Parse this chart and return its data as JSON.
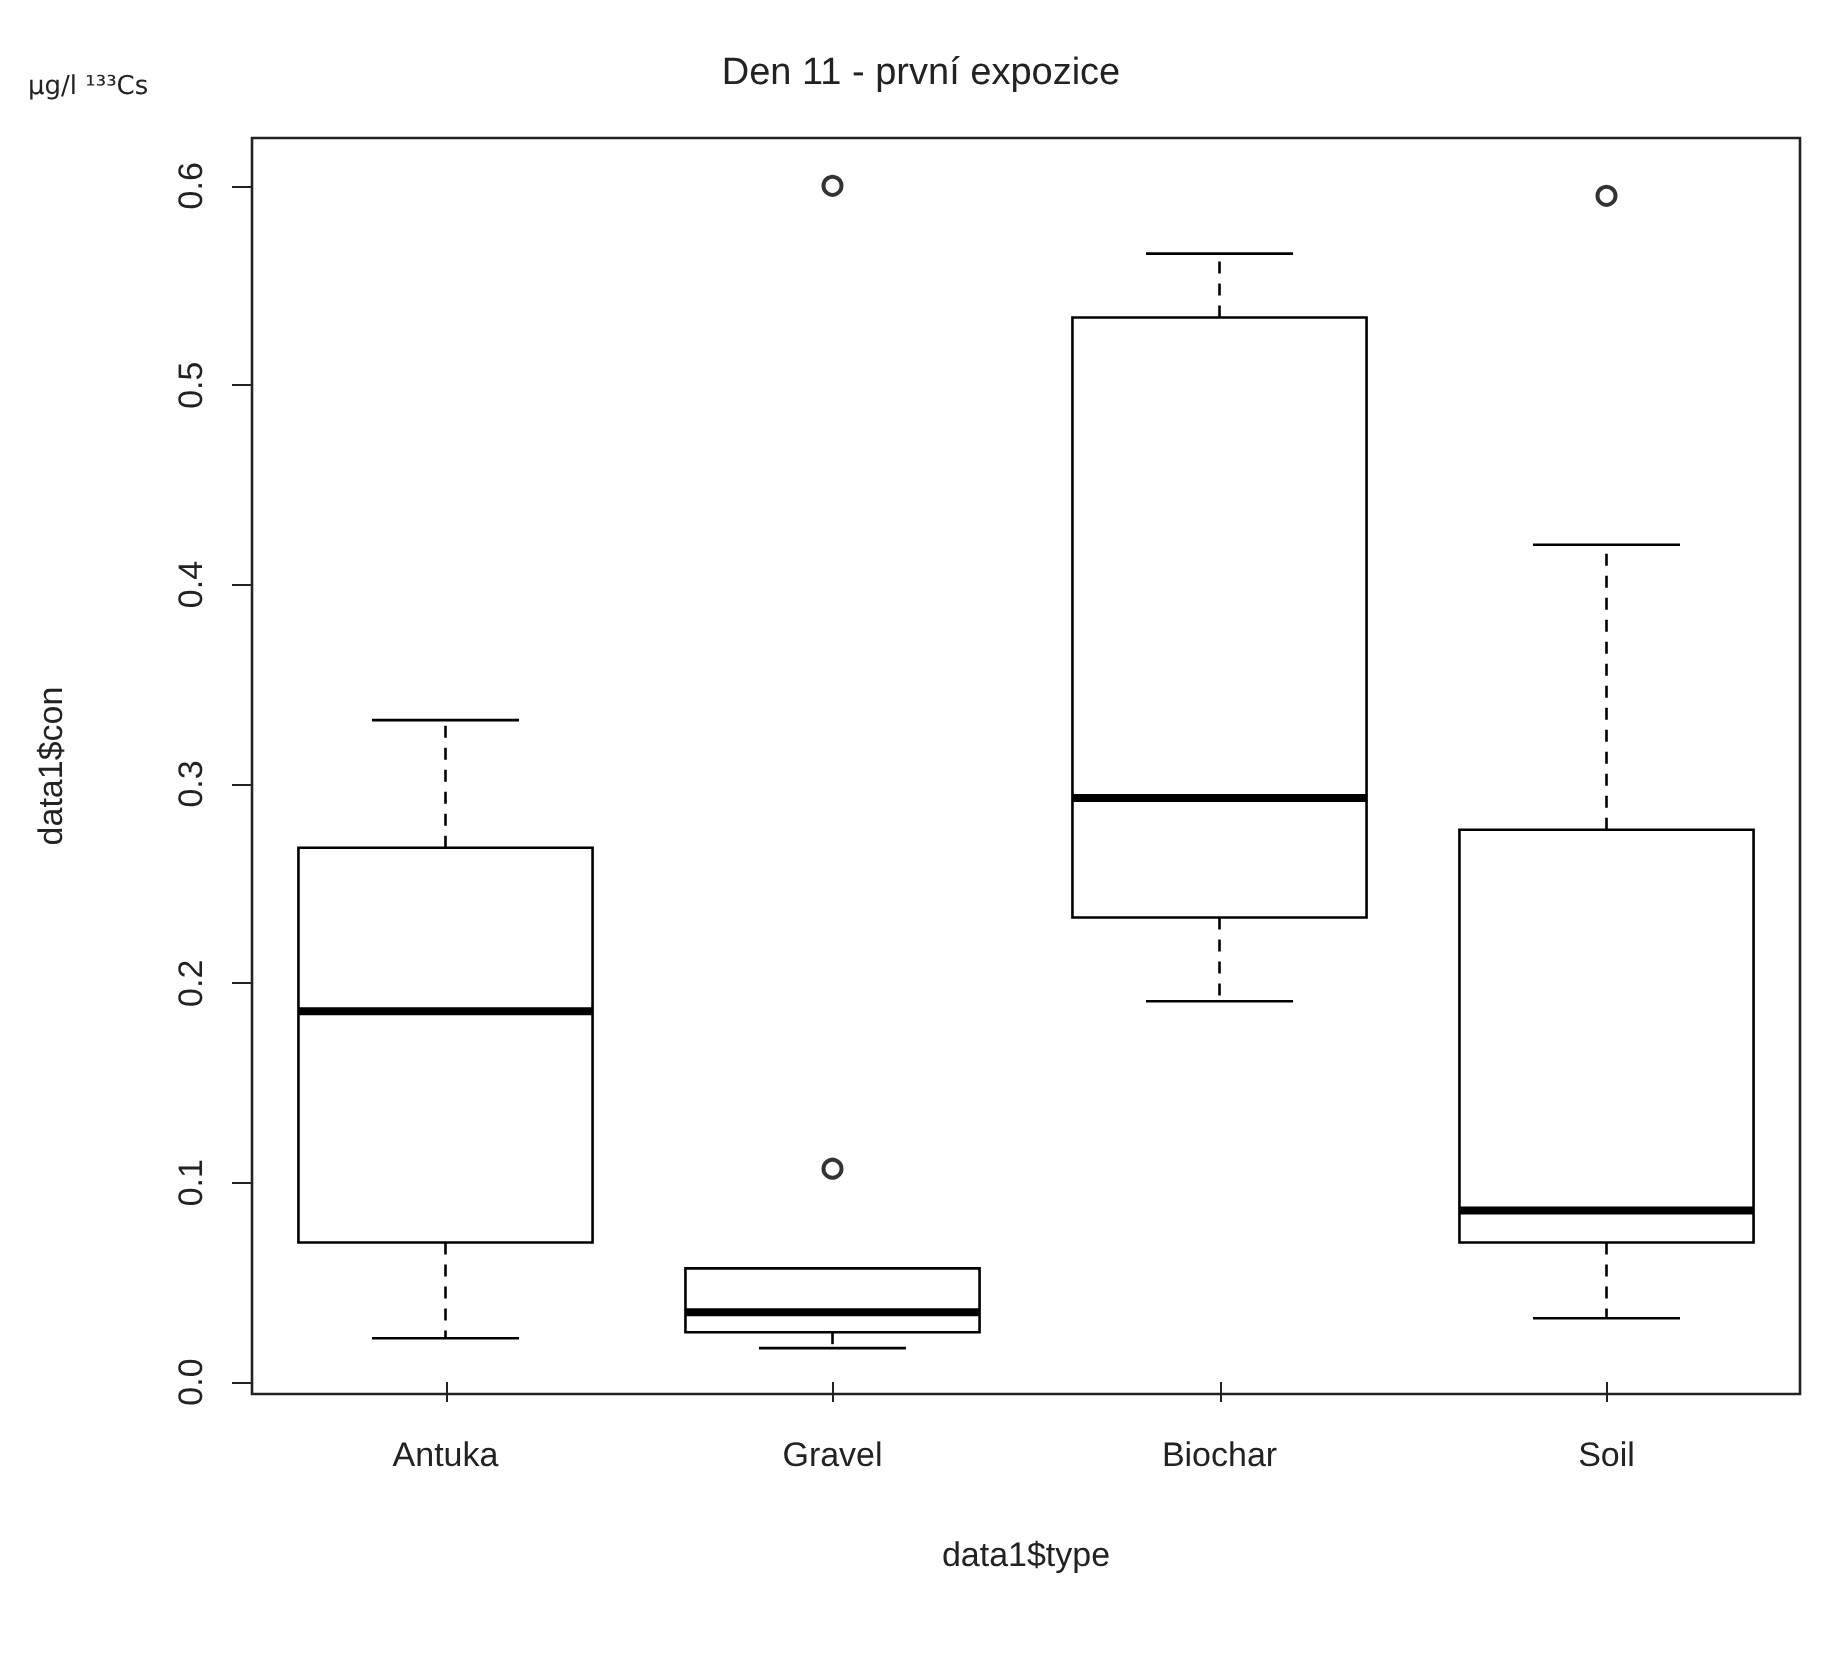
{
  "chart_data": {
    "type": "box",
    "title": "Den 11 - první expozice",
    "xlabel": "data1$type",
    "ylabel": "data1$con",
    "annotations": [
      "μg/l ¹³³Cs"
    ],
    "categories": [
      "Antuka",
      "Gravel",
      "Biochar",
      "Soil"
    ],
    "boxes": [
      {
        "low": 0.022,
        "q1": 0.07,
        "median": 0.186,
        "q3": 0.268,
        "high": 0.332
      },
      {
        "low": 0.017,
        "q1": 0.025,
        "median": 0.035,
        "q3": 0.057,
        "high": 0.057,
        "outliers": [
          0.107,
          0.6
        ]
      },
      {
        "low": 0.191,
        "q1": 0.233,
        "median": 0.293,
        "q3": 0.534,
        "high": 0.566
      },
      {
        "low": 0.032,
        "q1": 0.07,
        "median": 0.086,
        "q3": 0.277,
        "high": 0.42,
        "outliers": [
          0.595
        ]
      }
    ],
    "ylim": [
      -0.006,
      0.624
    ],
    "yticks": [
      {
        "value": 0,
        "label": "0.0"
      },
      0.1,
      0.2,
      0.3,
      0.4,
      0.5,
      0.6
    ],
    "grid": false
  }
}
